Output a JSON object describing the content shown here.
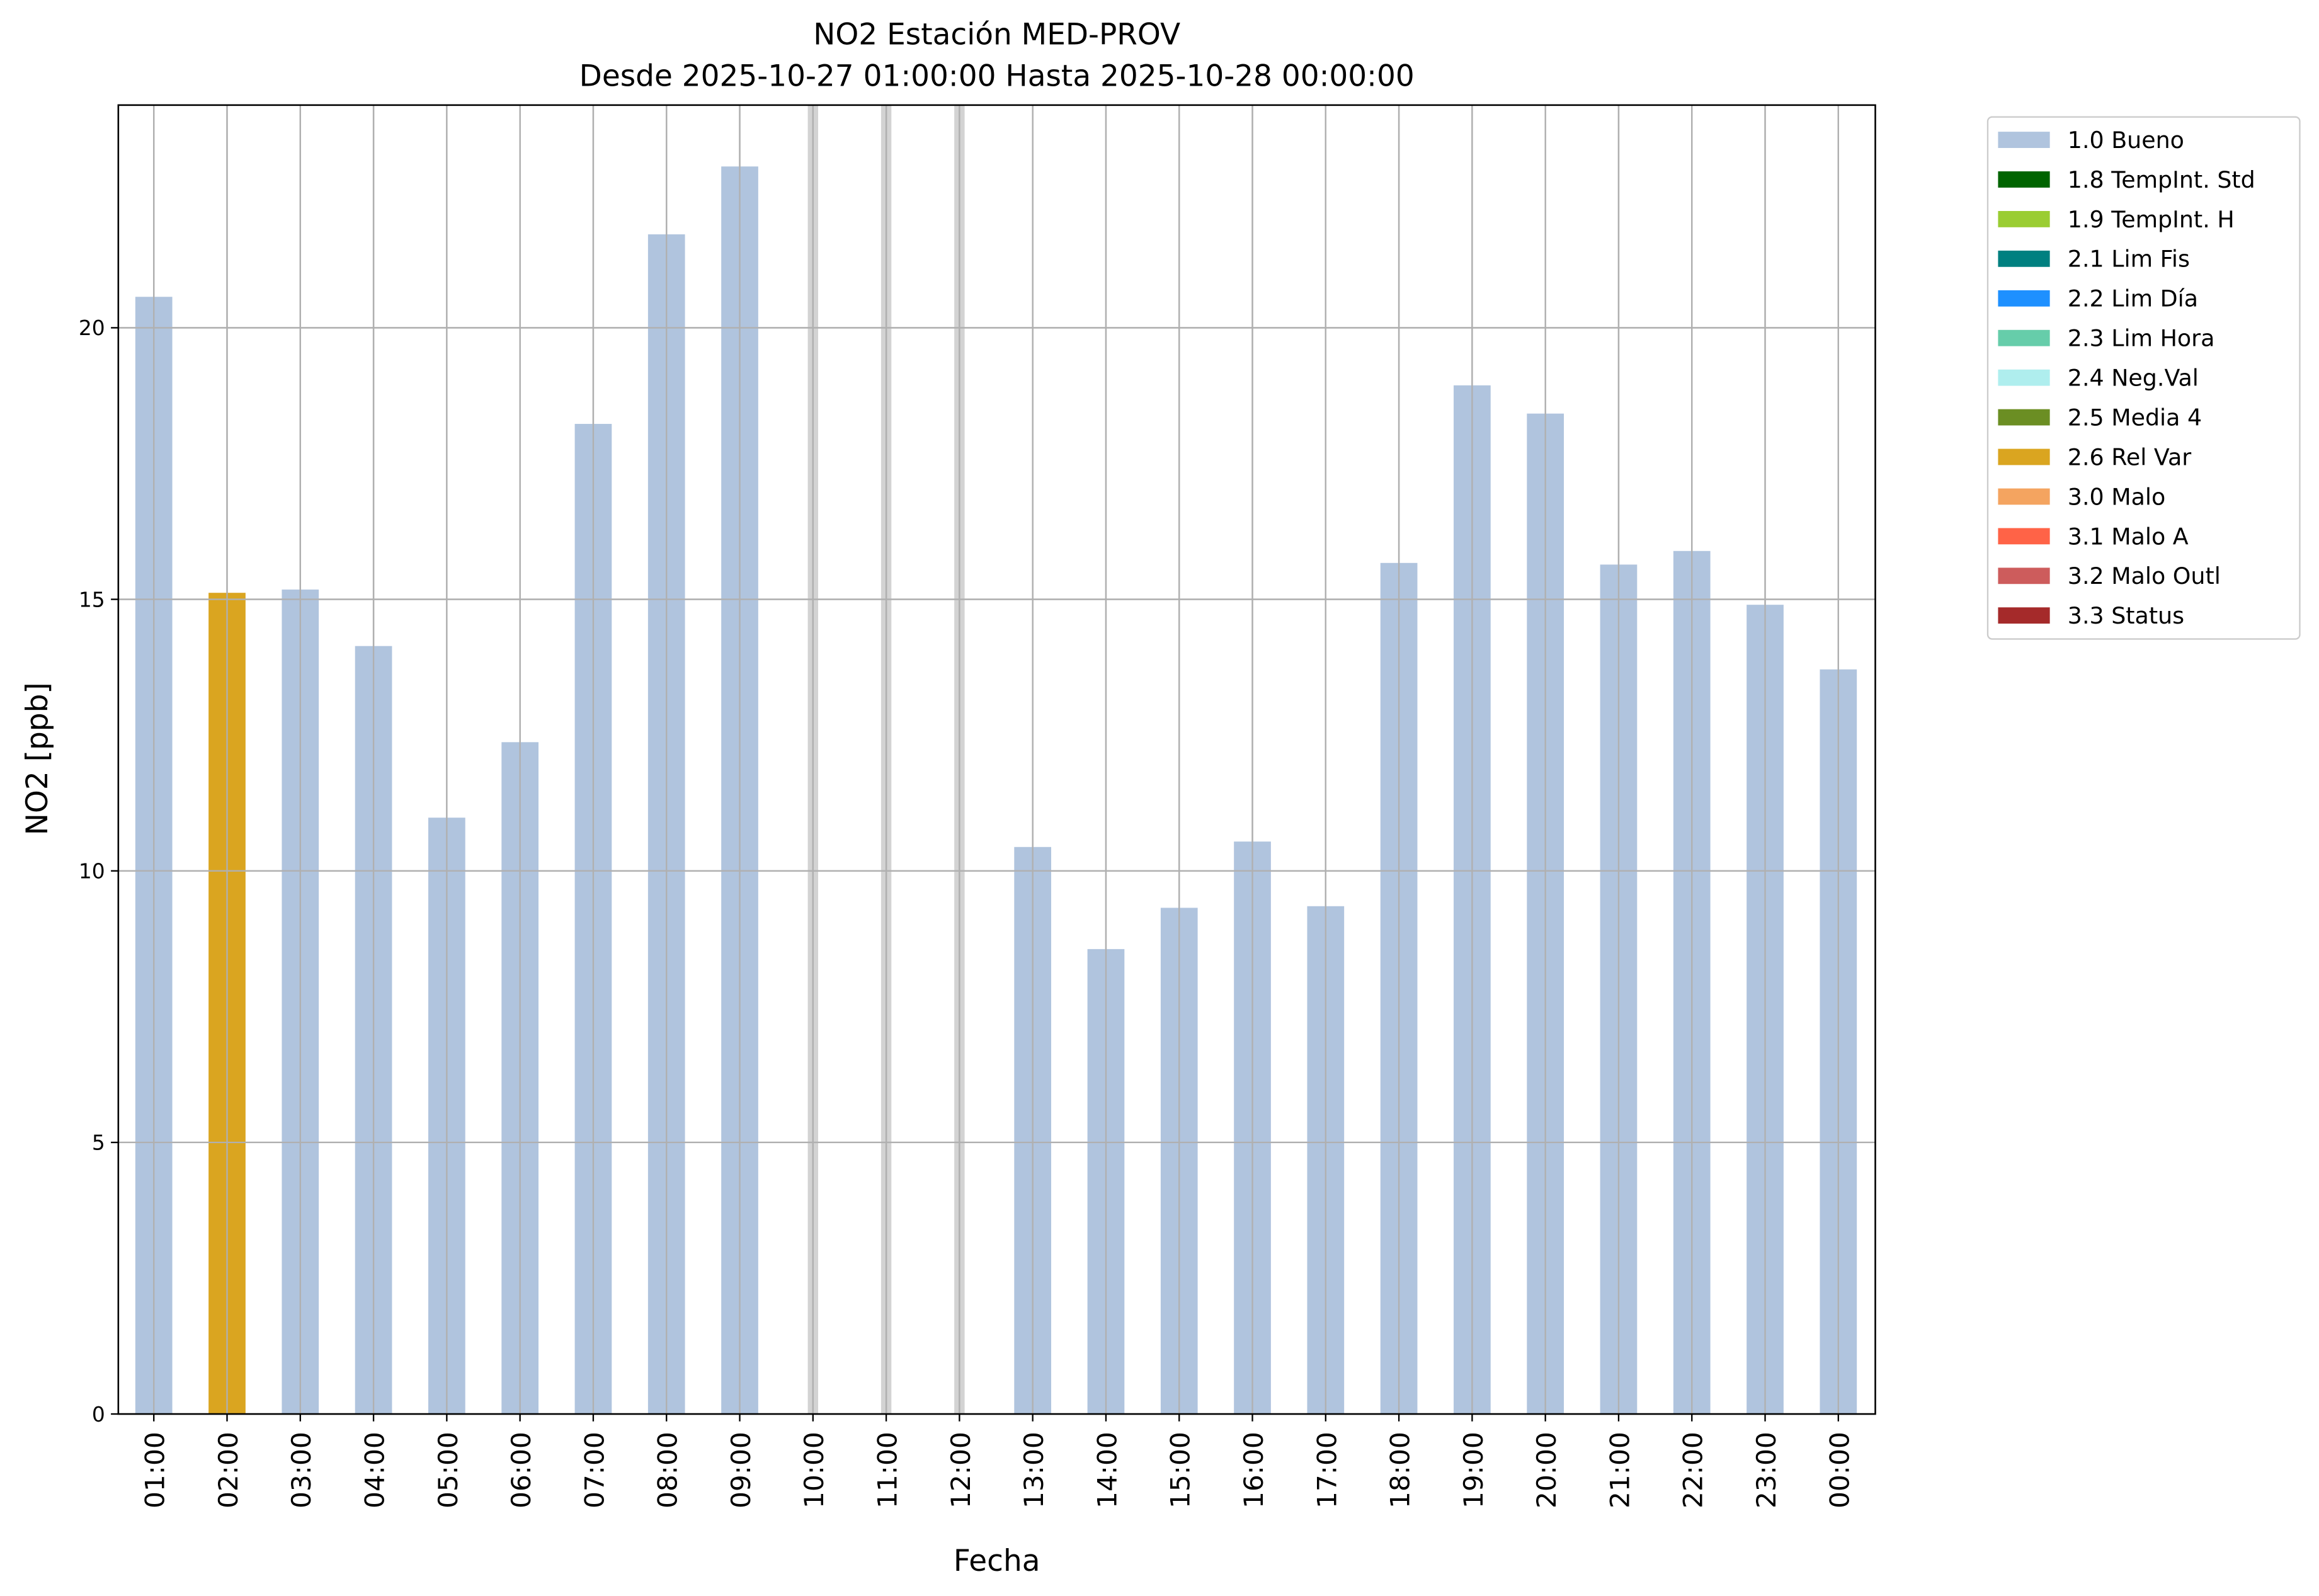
{
  "chart_data": {
    "type": "bar",
    "title": "NO2 Estación MED-PROV",
    "subtitle": "Desde 2025-10-27 01:00:00 Hasta 2025-10-28 00:00:00",
    "xlabel": "Fecha",
    "ylabel": "NO2 [ppb]",
    "ylim": [
      0,
      24.1
    ],
    "yticks": [
      0,
      5,
      10,
      15,
      20
    ],
    "grid": true,
    "legend_placement": "outside-top-right",
    "categories": [
      "01:00",
      "02:00",
      "03:00",
      "04:00",
      "05:00",
      "06:00",
      "07:00",
      "08:00",
      "09:00",
      "10:00",
      "11:00",
      "12:00",
      "13:00",
      "14:00",
      "15:00",
      "16:00",
      "17:00",
      "18:00",
      "19:00",
      "20:00",
      "21:00",
      "22:00",
      "23:00",
      "00:00"
    ],
    "values": [
      20.57,
      15.12,
      15.18,
      14.14,
      10.98,
      12.37,
      18.23,
      21.72,
      22.97,
      null,
      null,
      null,
      10.44,
      8.56,
      9.32,
      10.54,
      9.35,
      15.67,
      18.94,
      18.42,
      15.64,
      15.89,
      14.9,
      13.71
    ],
    "flags": [
      "1.0 Bueno",
      "2.6 Rel Var",
      "1.0 Bueno",
      "1.0 Bueno",
      "1.0 Bueno",
      "1.0 Bueno",
      "1.0 Bueno",
      "1.0 Bueno",
      "1.0 Bueno",
      null,
      null,
      null,
      "1.0 Bueno",
      "1.0 Bueno",
      "1.0 Bueno",
      "1.0 Bueno",
      "1.0 Bueno",
      "1.0 Bueno",
      "1.0 Bueno",
      "1.0 Bueno",
      "1.0 Bueno",
      "1.0 Bueno",
      "1.0 Bueno",
      "1.0 Bueno"
    ],
    "missing_color": "#d3d3d3",
    "legend": [
      {
        "label": "1.0 Bueno",
        "color": "#b0c4de"
      },
      {
        "label": "1.8 TempInt. Std",
        "color": "#006400"
      },
      {
        "label": "1.9 TempInt. H",
        "color": "#9acd32"
      },
      {
        "label": "2.1 Lim Fis",
        "color": "#008080"
      },
      {
        "label": "2.2 Lim Día",
        "color": "#1e90ff"
      },
      {
        "label": "2.3 Lim Hora",
        "color": "#66cdaa"
      },
      {
        "label": "2.4 Neg.Val",
        "color": "#afeeee"
      },
      {
        "label": "2.5 Media 4",
        "color": "#6b8e23"
      },
      {
        "label": "2.6 Rel Var",
        "color": "#daa520"
      },
      {
        "label": "3.0 Malo",
        "color": "#f4a460"
      },
      {
        "label": "3.1 Malo A",
        "color": "#ff6347"
      },
      {
        "label": "3.2 Malo Outl",
        "color": "#cd5c5c"
      },
      {
        "label": "3.3 Status",
        "color": "#a52a2a"
      }
    ]
  }
}
